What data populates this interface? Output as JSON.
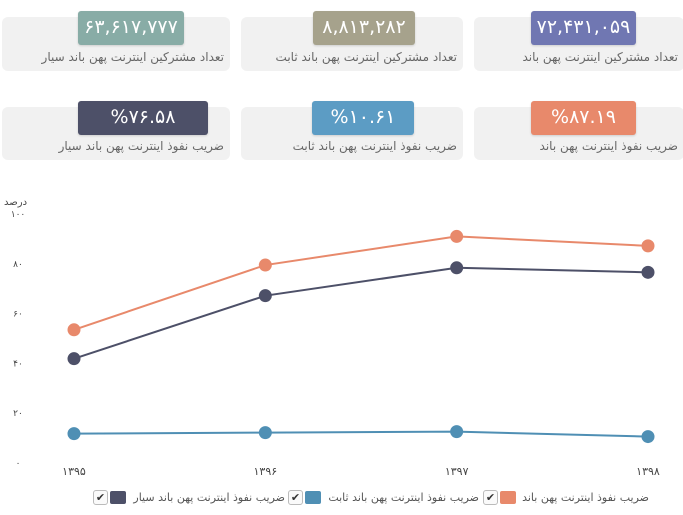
{
  "cards": [
    {
      "value": "۷۲,۴۳۱,۰۵۹",
      "label": "تعداد مشترکین اینترنت پهن باند",
      "color": "#7077b2"
    },
    {
      "value": "۸,۸۱۳,۲۸۲",
      "label": "تعداد مشترکین اینترنت پهن باند ثابت",
      "color": "#a6a28c"
    },
    {
      "value": "۶۳,۶۱۷,۷۷۷",
      "label": "تعداد مشترکین اینترنت پهن باند سیار",
      "color": "#88aca6"
    },
    {
      "value": "%۸۷.۱۹",
      "label": "ضریب نفوذ اینترنت پهن باند",
      "color": "#e8896b"
    },
    {
      "value": "%۱۰.۶۱",
      "label": "ضریب نفوذ اینترنت پهن باند ثابت",
      "color": "#5c9cc4"
    },
    {
      "value": "%۷۶.۵۸",
      "label": "ضریب نفوذ اینترنت پهن باند سیار",
      "color": "#4d5068"
    }
  ],
  "chart_data": {
    "type": "line",
    "ylabel": "درصد",
    "ylim": [
      0,
      100
    ],
    "yticks": [
      0,
      20,
      40,
      60,
      80,
      100
    ],
    "ytick_labels": [
      "۰",
      "۲۰",
      "۴۰",
      "۶۰",
      "۸۰",
      "۱۰۰"
    ],
    "categories": [
      "۱۳۹۵",
      "۱۳۹۶",
      "۱۳۹۷",
      "۱۳۹۸"
    ],
    "series": [
      {
        "name": "ضریب نفوذ اینترنت پهن باند",
        "color": "#e8896b",
        "values": [
          53.5,
          79.5,
          91.0,
          87.19
        ]
      },
      {
        "name": "ضریب نفوذ اینترنت پهن باند ثابت",
        "color": "#4f8fb4",
        "values": [
          11.8,
          12.2,
          12.6,
          10.61
        ]
      },
      {
        "name": "ضریب نفوذ اینترنت پهن باند سیار",
        "color": "#4d5068",
        "values": [
          41.9,
          67.2,
          78.4,
          76.58
        ]
      }
    ],
    "legend_position": "bottom",
    "grid": false
  }
}
